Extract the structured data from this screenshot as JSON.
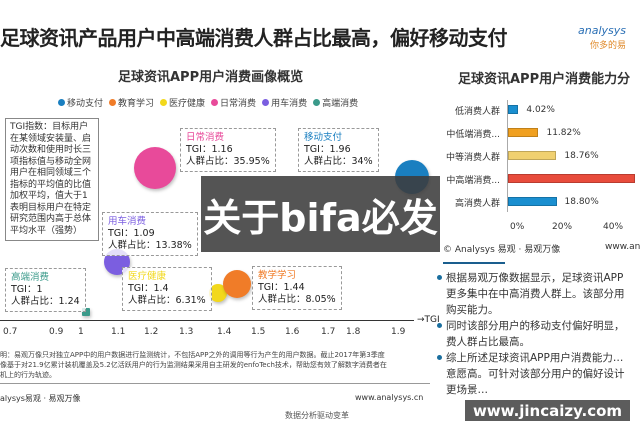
{
  "page": {
    "title": "足球资讯产品用户中高端消费人群占比最高，偏好移动支付",
    "logo_text": "analysys",
    "logo_sub": "你多的易"
  },
  "colors": {
    "移动支付": "#1a7fc0",
    "教育学习": "#f07c28",
    "医疗健康": "#f2d81c",
    "日常消费": "#e84a9a",
    "用车消费": "#7b5ee0",
    "高端消费": "#3a9a8a"
  },
  "chart_data": [
    {
      "type": "scatter",
      "title": "足球资讯APP用户消费画像概览",
      "xlabel": "TGI",
      "legend": [
        "移动支付",
        "教育学习",
        "医疗健康",
        "日常消费",
        "用车消费",
        "高端消费"
      ],
      "legend_position": "top",
      "x_ticks": [
        "0.7",
        "0.9",
        "1",
        "1.1",
        "1.2",
        "1.3",
        "1.4",
        "1.5",
        "1.6",
        "1.7",
        "1.8",
        "1.9"
      ],
      "points": [
        {
          "name": "日常消费",
          "tgi_label": "TGI：1.16",
          "share_label": "人群占比：35.95%",
          "tgi": 1.16,
          "share": 35.95
        },
        {
          "name": "移动支付",
          "tgi_label": "TGI：1.96",
          "share_label": "人群占比：34%",
          "tgi": 1.96,
          "share": 34
        },
        {
          "name": "用车消费",
          "tgi_label": "TGI：1.09",
          "share_label": "人群占比：13.38%",
          "tgi": 1.09,
          "share": 13.38
        },
        {
          "name": "高端消费",
          "tgi_label": "TGI：1",
          "share_label": "人群占比：1.24",
          "tgi": 1,
          "share": 1.24
        },
        {
          "name": "医疗健康",
          "tgi_label": "TGI：1.4",
          "share_label": "人群占比：6.31%",
          "tgi": 1.4,
          "share": 6.31
        },
        {
          "name": "教学学习",
          "tgi_label": "TGI：1.44",
          "share_label": "人群占比：8.05%",
          "tgi": 1.44,
          "share": 8.05
        }
      ],
      "note_box": "TGI指数：目标用户在某领域安装量、启动次数和使用时长三项指标值与移动全网用户在相同领域三个指标的平均值的比值加权平均，值大于1表明目标用户在特定研究范围内高于总体平均水平（强势）"
    },
    {
      "type": "bar",
      "orientation": "horizontal",
      "title": "足球资讯APP用户消费能力分",
      "categories": [
        "低消费人群",
        "中低端消费...",
        "中等消费人群",
        "中高端消费...",
        "高消费人群"
      ],
      "values": [
        4.02,
        11.82,
        18.76,
        null,
        18.8
      ],
      "labels": [
        "4.02%",
        "11.82%",
        "18.76%",
        "",
        "18.80%"
      ],
      "colors": [
        "#1a8fd0",
        "#f0a020",
        "#f0d070",
        "#e84c3c",
        "#1a8fd0"
      ],
      "x_ticks": [
        "0%",
        "20%",
        "40%"
      ],
      "xlim": [
        0,
        50
      ]
    }
  ],
  "right": {
    "source": "© Analysys 易观 · 易观万像",
    "url": "www.ana",
    "bullets": [
      "根据易观万像数据显示，足球资讯APP",
      "更多集中在中高消费人群上。该部分用",
      "购买能力。",
      "同时该部分用户的移动支付偏好明显，",
      "费人群占比最高。",
      "综上所述足球资讯APP用户消费能力…",
      "意愿高。可针对该部分用户的偏好设计",
      "更场景…"
    ]
  },
  "footer": {
    "note": [
      "明：易观万像只对独立APP中的用户数据进行监测统计，不包括APP之外的调用等行为产生的用户数据。截止2017年第3季度",
      "像基于对21.9亿累计装机覆盖及5.2亿活跃用户的行为监测结果采用自主研发的enfoTech技术，帮助您有效了解数字消费者在",
      "机上的行为轨迹。"
    ],
    "source": "alysys易观 · 易观万像",
    "url": "www.analysys.cn",
    "sub": "数据分析驱动变革"
  },
  "overlay": "关于bifa必发",
  "watermark": "www.jincaizy.com"
}
